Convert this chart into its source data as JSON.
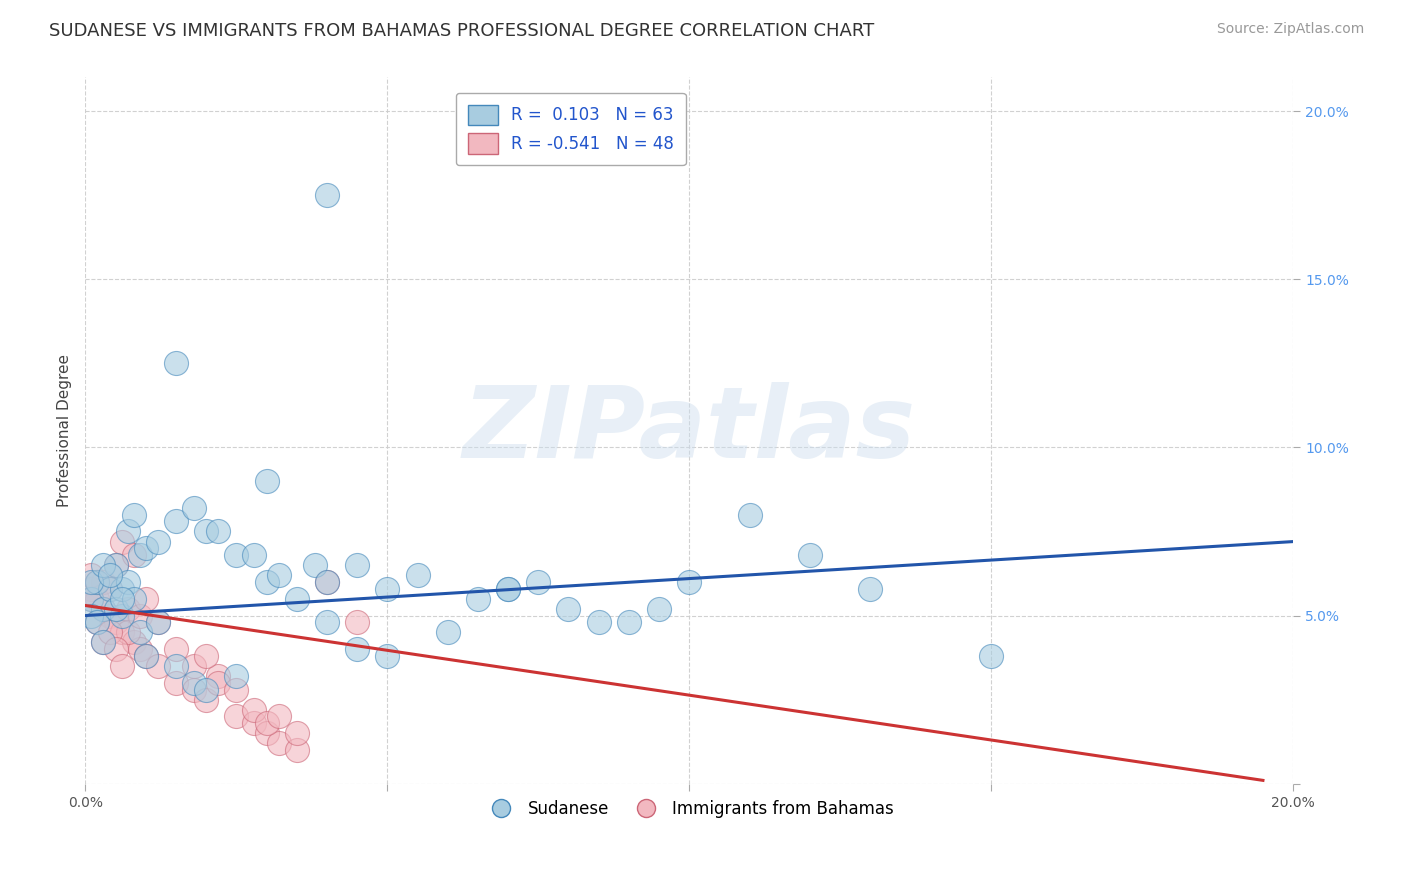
{
  "title": "SUDANESE VS IMMIGRANTS FROM BAHAMAS PROFESSIONAL DEGREE CORRELATION CHART",
  "source": "Source: ZipAtlas.com",
  "ylabel": "Professional Degree",
  "watermark": "ZIPatlas",
  "x_min": 0.0,
  "x_max": 0.2,
  "y_min": 0.0,
  "y_max": 0.21,
  "x_ticks": [
    0.0,
    0.05,
    0.1,
    0.15,
    0.2
  ],
  "x_tick_labels_show": [
    "0.0%",
    "",
    "",
    "",
    "20.0%"
  ],
  "y_ticks": [
    0.0,
    0.05,
    0.1,
    0.15,
    0.2
  ],
  "right_tick_labels": [
    "",
    "5.0%",
    "10.0%",
    "15.0%",
    "20.0%"
  ],
  "legend_line1": "R =  0.103   N = 63",
  "legend_line2": "R = -0.541   N = 48",
  "blue_color": "#a8cce0",
  "pink_color": "#f2b8c0",
  "blue_edge_color": "#4488bb",
  "pink_edge_color": "#cc6677",
  "blue_line_color": "#2255aa",
  "pink_line_color": "#cc3333",
  "blue_scatter": [
    [
      0.001,
      0.055
    ],
    [
      0.002,
      0.06
    ],
    [
      0.003,
      0.052
    ],
    [
      0.004,
      0.058
    ],
    [
      0.005,
      0.065
    ],
    [
      0.006,
      0.05
    ],
    [
      0.007,
      0.075
    ],
    [
      0.008,
      0.08
    ],
    [
      0.009,
      0.068
    ],
    [
      0.01,
      0.07
    ],
    [
      0.012,
      0.072
    ],
    [
      0.015,
      0.078
    ],
    [
      0.018,
      0.082
    ],
    [
      0.02,
      0.075
    ],
    [
      0.022,
      0.075
    ],
    [
      0.025,
      0.068
    ],
    [
      0.028,
      0.068
    ],
    [
      0.03,
      0.06
    ],
    [
      0.032,
      0.062
    ],
    [
      0.035,
      0.055
    ],
    [
      0.038,
      0.065
    ],
    [
      0.04,
      0.06
    ],
    [
      0.045,
      0.065
    ],
    [
      0.05,
      0.058
    ],
    [
      0.055,
      0.062
    ],
    [
      0.06,
      0.045
    ],
    [
      0.065,
      0.055
    ],
    [
      0.07,
      0.058
    ],
    [
      0.075,
      0.06
    ],
    [
      0.08,
      0.052
    ],
    [
      0.085,
      0.048
    ],
    [
      0.09,
      0.048
    ],
    [
      0.095,
      0.052
    ],
    [
      0.1,
      0.06
    ],
    [
      0.11,
      0.08
    ],
    [
      0.12,
      0.068
    ],
    [
      0.13,
      0.058
    ],
    [
      0.015,
      0.125
    ],
    [
      0.03,
      0.09
    ],
    [
      0.001,
      0.05
    ],
    [
      0.002,
      0.048
    ],
    [
      0.003,
      0.042
    ],
    [
      0.005,
      0.052
    ],
    [
      0.006,
      0.058
    ],
    [
      0.007,
      0.06
    ],
    [
      0.008,
      0.055
    ],
    [
      0.009,
      0.045
    ],
    [
      0.01,
      0.038
    ],
    [
      0.012,
      0.048
    ],
    [
      0.015,
      0.035
    ],
    [
      0.018,
      0.03
    ],
    [
      0.02,
      0.028
    ],
    [
      0.025,
      0.032
    ],
    [
      0.15,
      0.038
    ],
    [
      0.04,
      0.048
    ],
    [
      0.045,
      0.04
    ],
    [
      0.05,
      0.038
    ],
    [
      0.001,
      0.06
    ],
    [
      0.003,
      0.065
    ],
    [
      0.004,
      0.062
    ],
    [
      0.006,
      0.055
    ],
    [
      0.07,
      0.058
    ],
    [
      0.04,
      0.175
    ]
  ],
  "pink_scatter": [
    [
      0.001,
      0.058
    ],
    [
      0.002,
      0.055
    ],
    [
      0.003,
      0.06
    ],
    [
      0.004,
      0.05
    ],
    [
      0.005,
      0.048
    ],
    [
      0.006,
      0.045
    ],
    [
      0.007,
      0.052
    ],
    [
      0.008,
      0.042
    ],
    [
      0.009,
      0.04
    ],
    [
      0.01,
      0.038
    ],
    [
      0.012,
      0.035
    ],
    [
      0.015,
      0.03
    ],
    [
      0.018,
      0.028
    ],
    [
      0.02,
      0.025
    ],
    [
      0.022,
      0.032
    ],
    [
      0.025,
      0.02
    ],
    [
      0.028,
      0.018
    ],
    [
      0.03,
      0.015
    ],
    [
      0.032,
      0.012
    ],
    [
      0.035,
      0.01
    ],
    [
      0.001,
      0.062
    ],
    [
      0.002,
      0.048
    ],
    [
      0.003,
      0.042
    ],
    [
      0.004,
      0.058
    ],
    [
      0.005,
      0.065
    ],
    [
      0.006,
      0.072
    ],
    [
      0.007,
      0.045
    ],
    [
      0.008,
      0.068
    ],
    [
      0.009,
      0.05
    ],
    [
      0.01,
      0.055
    ],
    [
      0.012,
      0.048
    ],
    [
      0.015,
      0.04
    ],
    [
      0.018,
      0.035
    ],
    [
      0.02,
      0.038
    ],
    [
      0.022,
      0.03
    ],
    [
      0.025,
      0.028
    ],
    [
      0.028,
      0.022
    ],
    [
      0.03,
      0.018
    ],
    [
      0.032,
      0.02
    ],
    [
      0.035,
      0.015
    ],
    [
      0.001,
      0.055
    ],
    [
      0.002,
      0.06
    ],
    [
      0.003,
      0.052
    ],
    [
      0.004,
      0.045
    ],
    [
      0.005,
      0.04
    ],
    [
      0.006,
      0.035
    ],
    [
      0.04,
      0.06
    ],
    [
      0.045,
      0.048
    ]
  ],
  "blue_line_x": [
    0.0,
    0.2
  ],
  "blue_line_y": [
    0.05,
    0.072
  ],
  "pink_line_x": [
    0.0,
    0.195
  ],
  "pink_line_y": [
    0.053,
    0.001
  ],
  "bg_color": "#ffffff",
  "title_fontsize": 13,
  "source_fontsize": 10,
  "tick_fontsize": 10
}
